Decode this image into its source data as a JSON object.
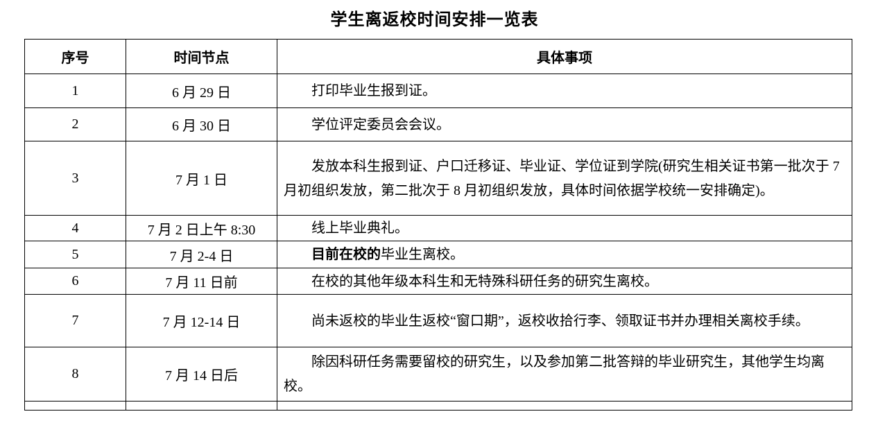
{
  "title": "学生离返校时间安排一览表",
  "colors": {
    "text": "#000000",
    "border": "#000000",
    "background": "#ffffff"
  },
  "table": {
    "headers": [
      "序号",
      "时间节点",
      "具体事项"
    ],
    "rows": [
      {
        "no": "1",
        "time": "6 月 29 日",
        "detail": "打印毕业生报到证。"
      },
      {
        "no": "2",
        "time": "6 月 30 日",
        "detail": "学位评定委员会会议。"
      },
      {
        "no": "3",
        "time": "7 月 1 日",
        "detail": "发放本科生报到证、户口迁移证、毕业证、学位证到学院(研究生相关证书第一批次于 7 月初组织发放，第二批次于 8 月初组织发放，具体时间依据学校统一安排确定)。"
      },
      {
        "no": "4",
        "time": "7 月 2 日上午 8:30",
        "detail": "线上毕业典礼。"
      },
      {
        "no": "5",
        "time": "7 月 2-4 日",
        "detail_bold": "目前在校的",
        "detail": "毕业生离校。"
      },
      {
        "no": "6",
        "time": "7 月 11 日前",
        "detail": "在校的其他年级本科生和无特殊科研任务的研究生离校。"
      },
      {
        "no": "7",
        "time": "7 月 12-14 日",
        "detail": "尚未返校的毕业生返校“窗口期”，返校收拾行李、领取证书并办理相关离校手续。"
      },
      {
        "no": "8",
        "time": "7 月 14 日后",
        "detail": "除因科研任务需要留校的研究生，以及参加第二批答辩的毕业研究生，其他学生均离校。"
      }
    ]
  }
}
